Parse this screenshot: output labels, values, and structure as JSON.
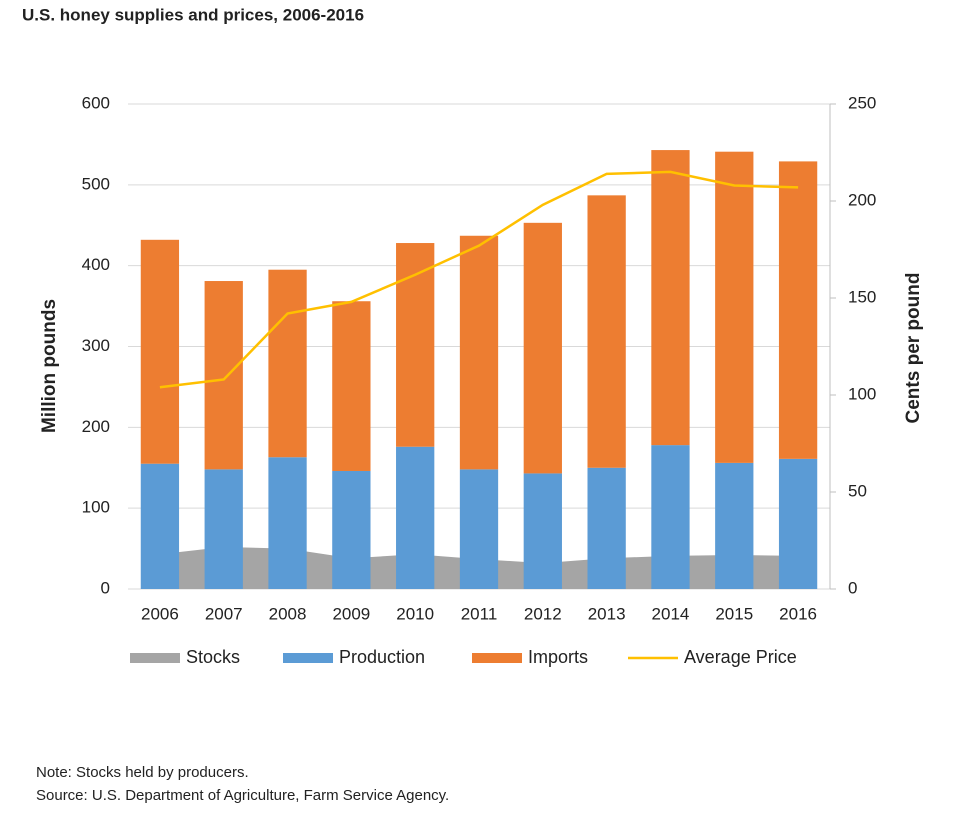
{
  "chart_data": {
    "type": "bar",
    "title": "U.S. honey supplies and prices, 2006-2016",
    "categories": [
      "2006",
      "2007",
      "2008",
      "2009",
      "2010",
      "2011",
      "2012",
      "2013",
      "2014",
      "2015",
      "2016"
    ],
    "series": [
      {
        "name": "Stocks",
        "color": "#a5a5a5",
        "mark": "area",
        "values": [
          43,
          52,
          50,
          38,
          43,
          37,
          32,
          38,
          41,
          42,
          41
        ]
      },
      {
        "name": "Production",
        "color": "#5b9bd5",
        "mark": "bar",
        "stack": true,
        "values": [
          155,
          148,
          163,
          146,
          176,
          148,
          143,
          150,
          178,
          156,
          161
        ]
      },
      {
        "name": "Imports",
        "color": "#ed7d31",
        "mark": "bar",
        "stack": true,
        "values": [
          277,
          233,
          232,
          210,
          252,
          289,
          310,
          337,
          365,
          385,
          368
        ]
      },
      {
        "name": "Average  Price",
        "color": "#ffc000",
        "mark": "line",
        "axis": "y2",
        "values": [
          104,
          108,
          142,
          148,
          162,
          177,
          198,
          214,
          215,
          208,
          207
        ]
      }
    ],
    "ylabel": "Million  pounds",
    "y2label": "Cents per pound",
    "ylim": [
      0,
      600
    ],
    "yticks": [
      0,
      100,
      200,
      300,
      400,
      500,
      600
    ],
    "y2lim": [
      0,
      250
    ],
    "y2ticks": [
      0,
      50,
      100,
      150,
      200,
      250
    ],
    "grid": true,
    "legend": "bottom",
    "note": "Note:  Stocks held by producers.",
    "source": "Source:  U.S. Department  of Agriculture, Farm Service  Agency."
  }
}
